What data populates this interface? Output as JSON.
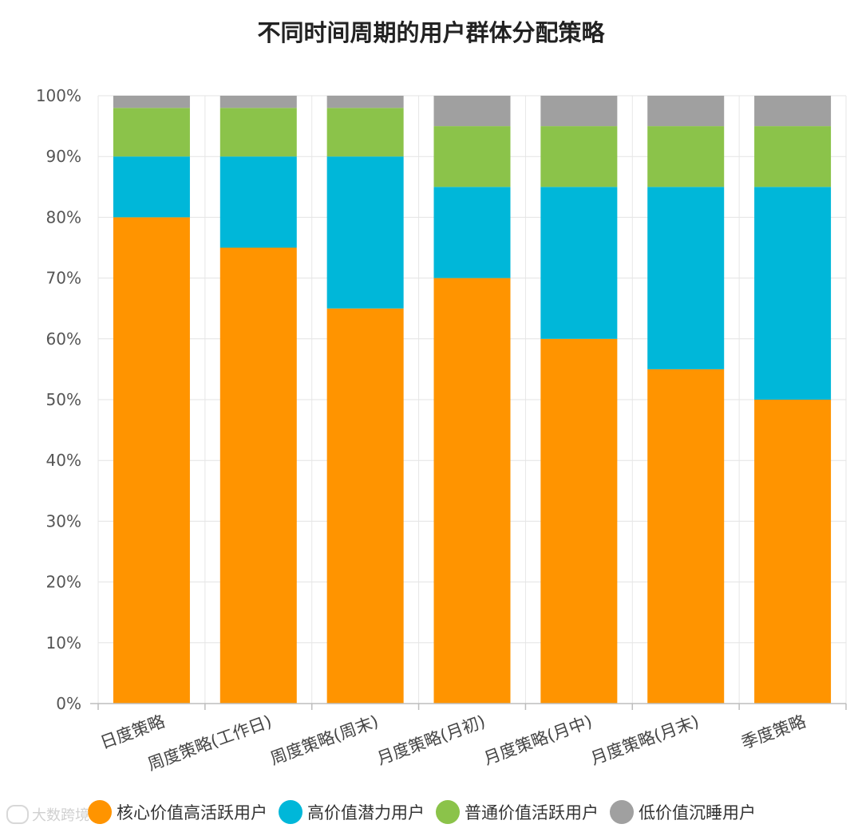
{
  "chart_data": {
    "type": "bar",
    "stacked": true,
    "title": "不同时间周期的用户群体分配策略",
    "categories": [
      "日度策略",
      "周度策略(工作日)",
      "周度策略(周末)",
      "月度策略(月初)",
      "月度策略(月中)",
      "月度策略(月末)",
      "季度策略"
    ],
    "series": [
      {
        "name": "核心价值高活跃用户",
        "color": "#FF9400",
        "values": [
          80,
          75,
          65,
          70,
          60,
          55,
          50
        ]
      },
      {
        "name": "高价值潜力用户",
        "color": "#00B7D9",
        "values": [
          10,
          15,
          25,
          15,
          25,
          30,
          35
        ]
      },
      {
        "name": "普通价值活跃用户",
        "color": "#8BC34A",
        "values": [
          8,
          8,
          8,
          10,
          10,
          10,
          10
        ]
      },
      {
        "name": "低价值沉睡用户",
        "color": "#A0A0A0",
        "values": [
          2,
          2,
          2,
          5,
          5,
          5,
          5
        ]
      }
    ],
    "ylim": [
      0,
      100
    ],
    "yticks": [
      "0%",
      "10%",
      "20%",
      "30%",
      "40%",
      "50%",
      "60%",
      "70%",
      "80%",
      "90%",
      "100%"
    ],
    "grid": true,
    "legend_position": "bottom"
  },
  "watermark": "大数跨境"
}
